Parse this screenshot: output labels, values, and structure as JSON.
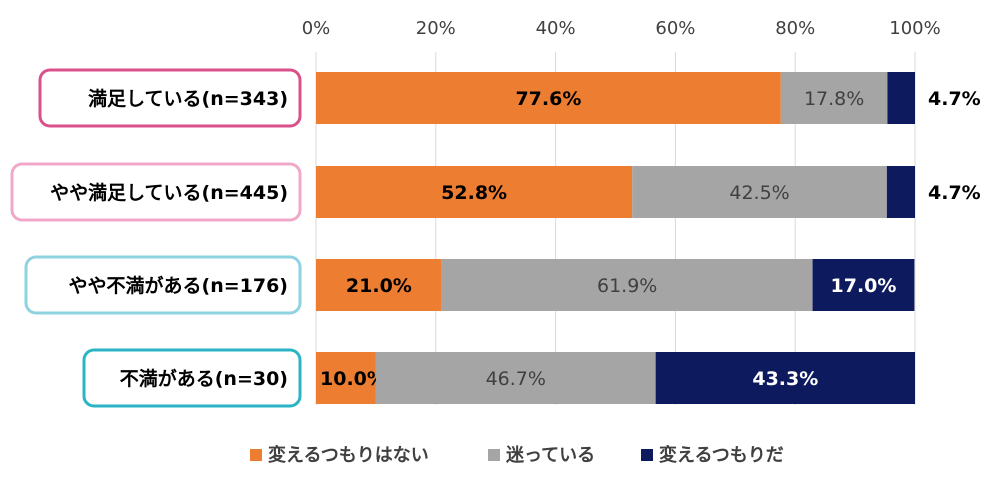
{
  "chart_data": {
    "type": "bar",
    "orientation": "horizontal",
    "stacked": true,
    "categories": [
      "満足している(n=343)",
      "やや満足している(n=445)",
      "やや不満がある(n=176)",
      "不満がある(n=30)"
    ],
    "category_border_colors": [
      "#d9508a",
      "#f0a8c8",
      "#8fd3e0",
      "#2bb5c4"
    ],
    "series": [
      {
        "name": "変えるつもりはない",
        "color": "#ed7d31",
        "values": [
          77.6,
          52.8,
          21.0,
          10.0
        ],
        "labels": [
          "77.6%",
          "52.8%",
          "21.0%",
          "10.0%"
        ],
        "label_color": "#000000"
      },
      {
        "name": "迷っている",
        "color": "#a5a5a5",
        "values": [
          17.8,
          42.5,
          61.9,
          46.7
        ],
        "labels": [
          "17.8%",
          "42.5%",
          "61.9%",
          "46.7%"
        ],
        "label_color": "#404040"
      },
      {
        "name": "変えるつもりだ",
        "color": "#0d1b5e",
        "values": [
          4.7,
          4.7,
          17.0,
          43.3
        ],
        "labels": [
          "4.7%",
          "4.7%",
          "17.0%",
          "43.3%"
        ],
        "label_color": "#ffffff"
      }
    ],
    "x_ticks": [
      "0%",
      "20%",
      "40%",
      "60%",
      "80%",
      "100%"
    ],
    "xlim": [
      0,
      100
    ],
    "grid": true,
    "legend_position": "bottom"
  }
}
